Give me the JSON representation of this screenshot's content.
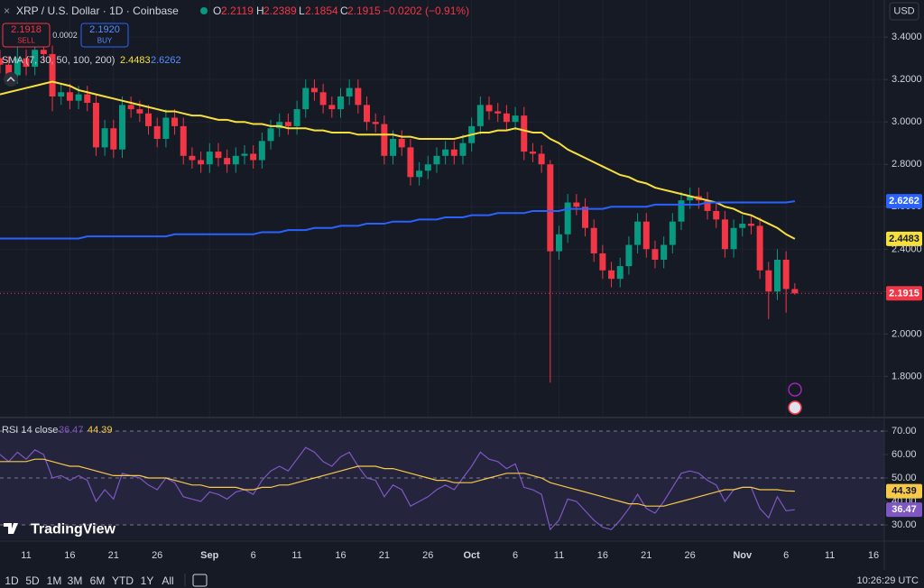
{
  "header": {
    "symbol": "XRP / U.S. Dollar · 1D · Coinbase",
    "o": "O",
    "h": "H",
    "l": "L",
    "c": "C",
    "change": "−0.0202 (−0.91%)",
    "currency": "USD"
  },
  "trade": {
    "sell_price": "2.1918",
    "sell": "SELL",
    "spread": "0.0002",
    "buy_price": "2.1920",
    "buy": "BUY"
  },
  "chart_data": [
    {
      "type": "candlestick",
      "legend": "SMA (7, 30, 50, 100, 200)",
      "up_color": "#089981",
      "down_color": "#f23645",
      "grid": true,
      "categories": [
        null,
        null,
        null,
        "11",
        null,
        null,
        null,
        null,
        "16",
        null,
        null,
        null,
        null,
        "21",
        null,
        null,
        null,
        null,
        "26",
        null,
        null,
        null,
        null,
        null,
        "Sep",
        null,
        null,
        null,
        null,
        "6",
        null,
        null,
        null,
        null,
        "11",
        null,
        null,
        null,
        null,
        "16",
        null,
        null,
        null,
        null,
        "21",
        null,
        null,
        null,
        null,
        "26",
        null,
        null,
        null,
        null,
        "Oct",
        null,
        null,
        null,
        null,
        "6",
        null,
        null,
        null,
        null,
        "11",
        null,
        null,
        null,
        null,
        "16",
        null,
        null,
        null,
        null,
        "21",
        null,
        null,
        null,
        null,
        "26",
        null,
        null,
        null,
        null,
        null,
        "Nov",
        null,
        null,
        null,
        null,
        "6",
        null,
        null,
        null,
        null,
        "11",
        null,
        null,
        null,
        null,
        "16"
      ],
      "open": [
        3.3,
        3.27,
        3.22,
        3.3,
        3.26,
        3.34,
        3.32,
        3.12,
        3.14,
        3.1,
        3.13,
        3.09,
        2.88,
        2.97,
        2.87,
        3.08,
        3.06,
        3.04,
        2.98,
        2.92,
        3.02,
        2.98,
        2.84,
        2.82,
        2.8,
        2.86,
        2.83,
        2.8,
        2.84,
        2.85,
        2.82,
        2.91,
        2.97,
        3.0,
        2.98,
        3.06,
        3.16,
        3.14,
        3.08,
        3.06,
        3.12,
        3.16,
        3.08,
        3.0,
        2.99,
        2.84,
        2.92,
        2.88,
        2.74,
        2.77,
        2.8,
        2.84,
        2.87,
        2.84,
        2.9,
        2.98,
        3.08,
        3.05,
        3.04,
        3.0,
        3.03,
        2.86,
        2.85,
        2.8,
        2.39,
        2.47,
        2.62,
        2.6,
        2.5,
        2.38,
        2.3,
        2.26,
        2.32,
        2.42,
        2.53,
        2.4,
        2.35,
        2.42,
        2.53,
        2.63,
        2.65,
        2.63,
        2.58,
        2.54,
        2.4,
        2.5,
        2.52,
        2.51,
        2.3,
        2.2,
        2.35,
        2.2119,
        null,
        null,
        null,
        null,
        null,
        null,
        null,
        null,
        null
      ],
      "high": [
        3.34,
        3.31,
        3.38,
        3.34,
        3.38,
        3.38,
        3.36,
        3.18,
        3.18,
        3.17,
        3.17,
        3.13,
        3.01,
        3.01,
        3.12,
        3.12,
        3.1,
        3.08,
        3.02,
        3.06,
        3.06,
        3.02,
        2.88,
        2.86,
        2.9,
        2.9,
        2.87,
        2.88,
        2.89,
        2.89,
        2.95,
        3.01,
        3.04,
        3.04,
        3.1,
        3.2,
        3.2,
        3.18,
        3.12,
        3.16,
        3.2,
        3.2,
        3.12,
        3.04,
        3.03,
        2.96,
        2.96,
        2.92,
        2.81,
        2.84,
        2.88,
        2.91,
        2.91,
        2.94,
        3.02,
        3.12,
        3.12,
        3.09,
        3.08,
        3.07,
        3.07,
        2.9,
        2.89,
        2.82,
        2.51,
        2.66,
        2.66,
        2.64,
        2.54,
        2.42,
        2.34,
        2.36,
        2.46,
        2.57,
        2.57,
        2.44,
        2.46,
        2.57,
        2.67,
        2.69,
        2.69,
        2.67,
        2.62,
        2.58,
        2.54,
        2.56,
        2.56,
        2.55,
        2.34,
        2.4,
        2.39,
        2.2389,
        null,
        null,
        null,
        null,
        null,
        null,
        null,
        null,
        null
      ],
      "low": [
        3.23,
        3.18,
        3.18,
        3.22,
        3.22,
        3.28,
        3.05,
        3.08,
        3.06,
        3.06,
        3.05,
        2.84,
        2.84,
        2.83,
        2.83,
        3.02,
        3.0,
        2.94,
        2.88,
        2.88,
        2.94,
        2.8,
        2.78,
        2.76,
        2.76,
        2.79,
        2.76,
        2.76,
        2.8,
        2.78,
        2.78,
        2.87,
        2.93,
        2.94,
        2.94,
        3.02,
        3.1,
        3.04,
        3.02,
        3.02,
        3.08,
        3.04,
        2.96,
        2.95,
        2.8,
        2.8,
        2.84,
        2.7,
        2.7,
        2.73,
        2.76,
        2.8,
        2.8,
        2.8,
        2.86,
        2.94,
        3.01,
        3.0,
        2.96,
        2.96,
        2.82,
        2.81,
        2.76,
        1.77,
        2.35,
        2.43,
        2.56,
        2.46,
        2.34,
        2.26,
        2.22,
        2.22,
        2.28,
        2.38,
        2.36,
        2.31,
        2.31,
        2.38,
        2.49,
        2.59,
        2.59,
        2.54,
        2.5,
        2.36,
        2.36,
        2.46,
        2.47,
        2.26,
        2.07,
        2.16,
        2.1,
        2.1854,
        null,
        null,
        null,
        null,
        null,
        null,
        null,
        null,
        null
      ],
      "close": [
        3.27,
        3.22,
        3.3,
        3.26,
        3.34,
        3.32,
        3.12,
        3.14,
        3.1,
        3.13,
        3.09,
        2.88,
        2.97,
        2.87,
        3.08,
        3.06,
        3.04,
        2.98,
        2.92,
        3.02,
        2.98,
        2.84,
        2.82,
        2.8,
        2.86,
        2.83,
        2.8,
        2.84,
        2.85,
        2.82,
        2.91,
        2.97,
        3.0,
        2.98,
        3.06,
        3.16,
        3.14,
        3.08,
        3.06,
        3.12,
        3.16,
        3.08,
        3.0,
        2.99,
        2.84,
        2.92,
        2.88,
        2.74,
        2.77,
        2.8,
        2.84,
        2.87,
        2.84,
        2.9,
        2.98,
        3.08,
        3.05,
        3.04,
        3.0,
        3.03,
        2.86,
        2.85,
        2.8,
        2.39,
        2.47,
        2.62,
        2.6,
        2.5,
        2.38,
        2.3,
        2.26,
        2.32,
        2.42,
        2.53,
        2.4,
        2.35,
        2.42,
        2.53,
        2.63,
        2.65,
        2.63,
        2.58,
        2.54,
        2.4,
        2.5,
        2.52,
        2.51,
        2.3,
        2.2,
        2.35,
        2.2119,
        2.1915,
        null,
        null,
        null,
        null,
        null,
        null,
        null,
        null,
        null
      ],
      "series": [
        {
          "color": "#f7e03c",
          "values": [
            3.13,
            3.14,
            3.15,
            3.16,
            3.17,
            3.18,
            3.19,
            3.18,
            3.17,
            3.15,
            3.14,
            3.13,
            3.12,
            3.11,
            3.1,
            3.09,
            3.08,
            3.07,
            3.06,
            3.05,
            3.05,
            3.04,
            3.03,
            3.03,
            3.02,
            3.01,
            3.01,
            3.0,
            3.0,
            2.99,
            2.99,
            2.98,
            2.98,
            2.97,
            2.97,
            2.97,
            2.96,
            2.96,
            2.95,
            2.95,
            2.95,
            2.94,
            2.94,
            2.94,
            2.94,
            2.94,
            2.93,
            2.93,
            2.92,
            2.92,
            2.92,
            2.92,
            2.92,
            2.93,
            2.94,
            2.95,
            2.95,
            2.96,
            2.96,
            2.97,
            2.96,
            2.95,
            2.95,
            2.92,
            2.9,
            2.87,
            2.85,
            2.83,
            2.81,
            2.79,
            2.77,
            2.75,
            2.74,
            2.72,
            2.71,
            2.69,
            2.68,
            2.67,
            2.66,
            2.65,
            2.64,
            2.63,
            2.62,
            2.6,
            2.59,
            2.57,
            2.56,
            2.54,
            2.52,
            2.5,
            2.47,
            2.4483,
            null,
            null,
            null,
            null,
            null,
            null,
            null,
            null,
            null
          ]
        },
        {
          "color": "#2962ff",
          "values": [
            2.45,
            2.45,
            2.45,
            2.45,
            2.45,
            2.45,
            2.45,
            2.45,
            2.45,
            2.45,
            2.46,
            2.46,
            2.46,
            2.46,
            2.46,
            2.46,
            2.46,
            2.46,
            2.46,
            2.46,
            2.47,
            2.47,
            2.47,
            2.47,
            2.47,
            2.47,
            2.47,
            2.47,
            2.47,
            2.47,
            2.48,
            2.48,
            2.48,
            2.49,
            2.49,
            2.49,
            2.5,
            2.5,
            2.5,
            2.51,
            2.51,
            2.51,
            2.52,
            2.52,
            2.52,
            2.53,
            2.53,
            2.53,
            2.54,
            2.54,
            2.54,
            2.55,
            2.55,
            2.55,
            2.56,
            2.56,
            2.56,
            2.57,
            2.57,
            2.57,
            2.57,
            2.58,
            2.58,
            2.58,
            2.58,
            2.59,
            2.59,
            2.59,
            2.59,
            2.59,
            2.6,
            2.6,
            2.6,
            2.6,
            2.6,
            2.61,
            2.61,
            2.61,
            2.61,
            2.61,
            2.61,
            2.62,
            2.62,
            2.62,
            2.62,
            2.62,
            2.62,
            2.62,
            2.62,
            2.62,
            2.62,
            2.6262,
            null,
            null,
            null,
            null,
            null,
            null,
            null,
            null,
            null
          ]
        }
      ],
      "ylim": [
        1.61,
        3.575
      ],
      "yticks": [
        {
          "value": 3.4,
          "label": "3.4000"
        },
        {
          "value": 3.2,
          "label": "3.2000"
        },
        {
          "value": 3.0,
          "label": "3.0000"
        },
        {
          "value": 2.8,
          "label": "2.8000"
        },
        {
          "value": 2.6,
          "label": "2.6000"
        },
        {
          "value": 2.4,
          "label": "2.4000"
        },
        {
          "value": 2.2,
          "label": "2.2000"
        },
        {
          "value": 2.0,
          "label": "2.0000"
        },
        {
          "value": 1.8,
          "label": "1.8000"
        }
      ]
    },
    {
      "type": "line",
      "title": "RSI 14 close",
      "band_color": "#7e57c2",
      "series": [
        {
          "color": "#7e57c2",
          "values": [
            60,
            57,
            61,
            58,
            62,
            60,
            50,
            51,
            49,
            51,
            49,
            40,
            45,
            41,
            52,
            51,
            50,
            47,
            45,
            50,
            48,
            42,
            41,
            40,
            44,
            43,
            41,
            44,
            45,
            43,
            49,
            53,
            55,
            53,
            58,
            63,
            61,
            57,
            55,
            59,
            61,
            55,
            50,
            49,
            42,
            47,
            45,
            38,
            40,
            42,
            45,
            47,
            45,
            50,
            55,
            61,
            58,
            57,
            54,
            56,
            46,
            45,
            43,
            28,
            32,
            41,
            40,
            36,
            32,
            29,
            28,
            32,
            37,
            43,
            37,
            35,
            40,
            46,
            52,
            53,
            52,
            49,
            47,
            40,
            45,
            46,
            46,
            37,
            33,
            42,
            36,
            36.47,
            null,
            null,
            null,
            null,
            null,
            null,
            null,
            null,
            null
          ]
        },
        {
          "color": "#f7c948",
          "values": [
            57,
            57,
            57,
            57,
            58,
            58,
            57,
            56,
            55,
            55,
            54,
            53,
            52,
            51,
            51,
            51,
            51,
            50,
            50,
            50,
            49,
            48,
            47,
            47,
            46,
            46,
            46,
            46,
            45,
            45,
            46,
            46,
            47,
            47,
            48,
            49,
            50,
            51,
            52,
            53,
            54,
            55,
            55,
            55,
            54,
            54,
            53,
            52,
            51,
            50,
            49,
            49,
            48,
            48,
            48,
            49,
            50,
            51,
            52,
            52,
            52,
            51,
            50,
            48,
            47,
            46,
            45,
            44,
            43,
            42,
            41,
            40,
            39,
            39,
            38,
            38,
            38,
            39,
            40,
            41,
            42,
            43,
            44,
            45,
            45,
            46,
            46,
            45,
            45,
            45,
            44.5,
            44.39,
            null,
            null,
            null,
            null,
            null,
            null,
            null,
            null,
            null
          ]
        }
      ],
      "ylim": [
        24,
        75
      ],
      "yticks": [
        {
          "value": 70,
          "label": "70.00",
          "dashed": true
        },
        {
          "value": 60,
          "label": "60.00"
        },
        {
          "value": 50,
          "label": "50.00",
          "dashed": true
        },
        {
          "value": 40,
          "label": "40.00"
        },
        {
          "value": 30,
          "label": "30.00",
          "dashed": true
        }
      ]
    }
  ],
  "logo": "TradingView",
  "toolbar": {
    "timeframes": [
      "1D",
      "5D",
      "1M",
      "3M",
      "6M",
      "YTD",
      "1Y",
      "All"
    ],
    "time": "10:26:29 UTC"
  }
}
